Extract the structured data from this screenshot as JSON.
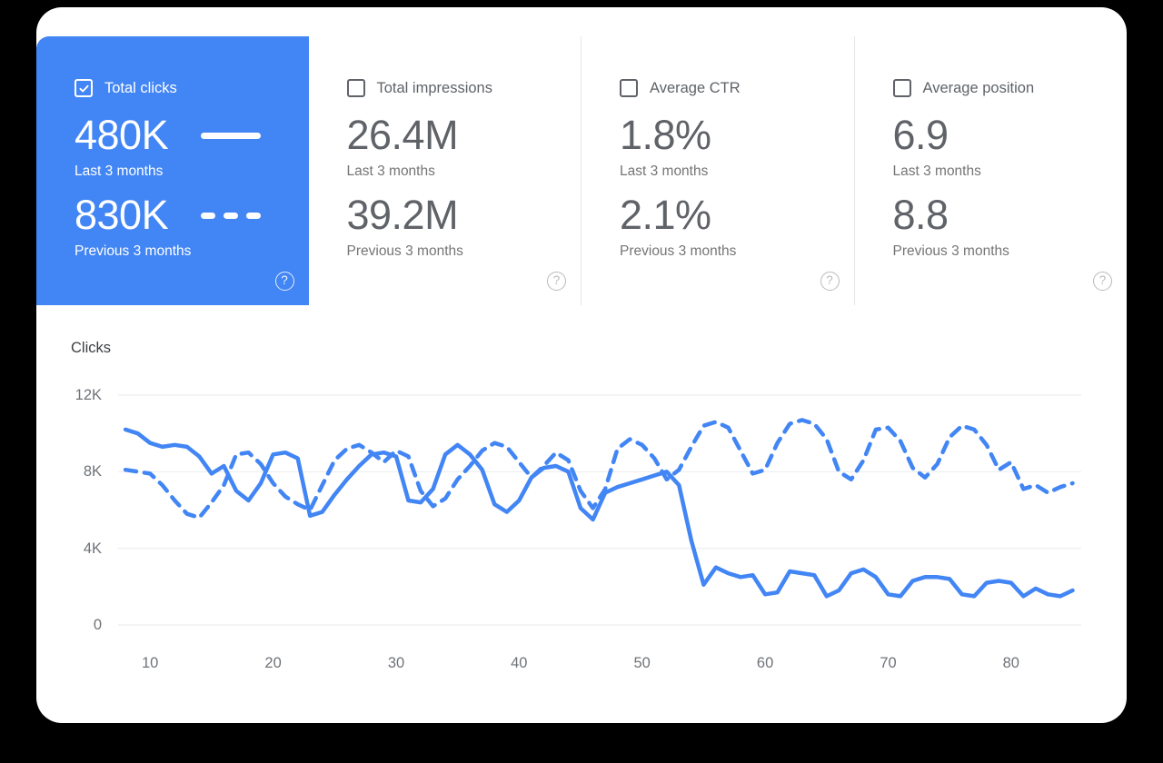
{
  "colors": {
    "accent_blue": "#4285f4",
    "page_background": "#000000",
    "card_background": "#ffffff",
    "value_gray": "#5f6368",
    "caption_gray": "#757575",
    "divider_gray": "#e4e7ea",
    "gridline_gray": "#e8eaed"
  },
  "ui": {
    "help_glyph": "?"
  },
  "metrics": [
    {
      "label": "Total clicks",
      "checked": true,
      "primary_value": "480K",
      "primary_caption": "Last 3 months",
      "secondary_value": "830K",
      "secondary_caption": "Previous 3 months"
    },
    {
      "label": "Total impressions",
      "checked": false,
      "primary_value": "26.4M",
      "primary_caption": "Last 3 months",
      "secondary_value": "39.2M",
      "secondary_caption": "Previous 3 months"
    },
    {
      "label": "Average CTR",
      "checked": false,
      "primary_value": "1.8%",
      "primary_caption": "Last 3 months",
      "secondary_value": "2.1%",
      "secondary_caption": "Previous 3 months"
    },
    {
      "label": "Average position",
      "checked": false,
      "primary_value": "6.9",
      "primary_caption": "Last 3 months",
      "secondary_value": "8.8",
      "secondary_caption": "Previous 3 months"
    }
  ],
  "chart_data": {
    "type": "line",
    "title": "Clicks",
    "xlabel": "",
    "ylabel": "Clicks",
    "y_unit": "thousands of clicks",
    "grid": "horizontal",
    "legend_position": "in-metric-card",
    "line_color": "#4285f4",
    "xlim": [
      7.4,
      85.7
    ],
    "ylim": [
      0,
      13.28
    ],
    "x_ticks": [
      10,
      20,
      30,
      40,
      50,
      60,
      70,
      80
    ],
    "y_ticks": [
      {
        "value": 12,
        "label": "12K"
      },
      {
        "value": 8,
        "label": "8K"
      },
      {
        "value": 4,
        "label": "4K"
      },
      {
        "value": 0,
        "label": "0"
      }
    ],
    "x": [
      8,
      9,
      10,
      11,
      12,
      13,
      14,
      15,
      16,
      17,
      18,
      19,
      20,
      21,
      22,
      23,
      24,
      25,
      26,
      27,
      28,
      29,
      30,
      31,
      32,
      33,
      34,
      35,
      36,
      37,
      38,
      39,
      40,
      41,
      42,
      43,
      44,
      45,
      46,
      47,
      48,
      49,
      50,
      51,
      52,
      53,
      54,
      55,
      56,
      57,
      58,
      59,
      60,
      61,
      62,
      63,
      64,
      65,
      66,
      67,
      68,
      69,
      70,
      71,
      72,
      73,
      74,
      75,
      76,
      77,
      78,
      79,
      80,
      81,
      82,
      83,
      84,
      85
    ],
    "series": [
      {
        "name": "Last 3 months",
        "style": "solid",
        "values": [
          10.2,
          10.0,
          9.5,
          9.3,
          9.4,
          9.3,
          8.8,
          7.9,
          8.3,
          7.0,
          6.5,
          7.4,
          8.9,
          9.0,
          8.7,
          5.7,
          5.9,
          6.8,
          7.6,
          8.3,
          8.9,
          9.0,
          8.8,
          6.5,
          6.4,
          7.1,
          8.9,
          9.4,
          8.9,
          8.1,
          6.3,
          5.9,
          6.5,
          7.7,
          8.2,
          8.3,
          8.0,
          6.1,
          5.5,
          6.9,
          7.2,
          7.4,
          7.6,
          7.8,
          8.0,
          7.3,
          4.4,
          2.1,
          3.0,
          2.7,
          2.5,
          2.6,
          1.6,
          1.7,
          2.8,
          2.7,
          2.6,
          1.5,
          1.8,
          2.7,
          2.9,
          2.5,
          1.6,
          1.5,
          2.3,
          2.5,
          2.5,
          2.4,
          1.6,
          1.5,
          2.2,
          2.3,
          2.2,
          1.5,
          1.9,
          1.6,
          1.5,
          1.8
        ]
      },
      {
        "name": "Previous 3 months",
        "style": "dashed",
        "values": [
          8.1,
          8.0,
          7.9,
          7.3,
          6.5,
          5.8,
          5.6,
          6.4,
          7.3,
          8.9,
          9.0,
          8.4,
          7.4,
          6.7,
          6.3,
          6.0,
          7.3,
          8.6,
          9.2,
          9.4,
          9.0,
          8.5,
          9.1,
          8.8,
          7.0,
          6.2,
          6.6,
          7.6,
          8.3,
          9.1,
          9.5,
          9.3,
          8.5,
          7.7,
          8.3,
          9.0,
          8.6,
          7.0,
          6.1,
          7.1,
          9.2,
          9.7,
          9.4,
          8.7,
          7.6,
          8.1,
          9.3,
          10.4,
          10.6,
          10.3,
          9.1,
          7.9,
          8.1,
          9.5,
          10.5,
          10.7,
          10.5,
          9.7,
          8.0,
          7.6,
          8.6,
          10.2,
          10.3,
          9.6,
          8.2,
          7.7,
          8.4,
          9.8,
          10.4,
          10.2,
          9.4,
          8.1,
          8.5,
          7.1,
          7.3,
          6.9,
          7.2,
          7.4
        ]
      }
    ]
  }
}
